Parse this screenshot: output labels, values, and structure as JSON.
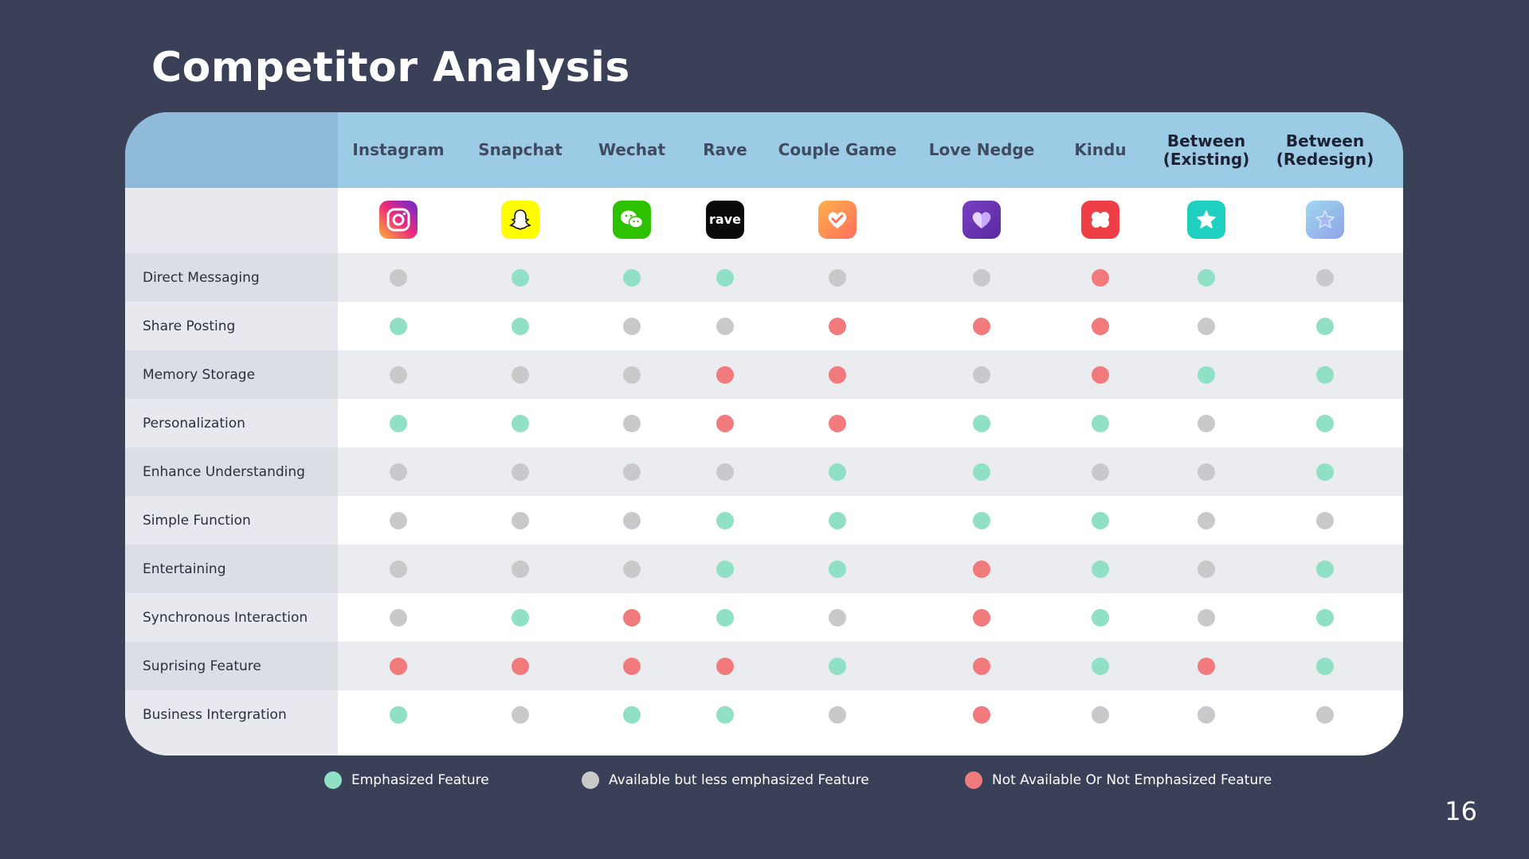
{
  "title": "Competitor Analysis",
  "page_number": "16",
  "colors": {
    "emphasized": "#8fe0c4",
    "available": "#c9c9cc",
    "not_available": "#f07a7c",
    "header_bg": "#9ccbe5",
    "header_text": "#3f4b61",
    "header_text_dark": "#1c2233"
  },
  "competitors": [
    {
      "name": "Instagram",
      "icon": "instagram-icon",
      "dark": false
    },
    {
      "name": "Snapchat",
      "icon": "snapchat-icon",
      "dark": false
    },
    {
      "name": "Wechat",
      "icon": "wechat-icon",
      "dark": false
    },
    {
      "name": "Rave",
      "icon": "rave-icon",
      "dark": false
    },
    {
      "name": "Couple Game",
      "icon": "couple-game-icon",
      "dark": false
    },
    {
      "name": "Love Nedge",
      "icon": "love-nedge-icon",
      "dark": false
    },
    {
      "name": "Kindu",
      "icon": "kindu-icon",
      "dark": false
    },
    {
      "name": "Between\n(Existing)",
      "icon": "between-existing-icon",
      "dark": true
    },
    {
      "name": "Between\n(Redesign)",
      "icon": "between-redesign-icon",
      "dark": true
    }
  ],
  "features": [
    {
      "label": "Direct Messaging",
      "values": [
        "A",
        "E",
        "E",
        "E",
        "A",
        "A",
        "N",
        "E",
        "A"
      ]
    },
    {
      "label": "Share Posting",
      "values": [
        "E",
        "E",
        "A",
        "A",
        "N",
        "N",
        "N",
        "A",
        "E"
      ]
    },
    {
      "label": "Memory Storage",
      "values": [
        "A",
        "A",
        "A",
        "N",
        "N",
        "A",
        "N",
        "E",
        "E"
      ]
    },
    {
      "label": "Personalization",
      "values": [
        "E",
        "E",
        "A",
        "N",
        "N",
        "E",
        "E",
        "A",
        "E"
      ]
    },
    {
      "label": "Enhance Understanding",
      "values": [
        "A",
        "A",
        "A",
        "A",
        "E",
        "E",
        "A",
        "A",
        "E"
      ]
    },
    {
      "label": "Simple Function",
      "values": [
        "A",
        "A",
        "A",
        "E",
        "E",
        "E",
        "E",
        "A",
        "A"
      ]
    },
    {
      "label": "Entertaining",
      "values": [
        "A",
        "A",
        "A",
        "E",
        "E",
        "N",
        "E",
        "A",
        "E"
      ]
    },
    {
      "label": "Synchronous Interaction",
      "values": [
        "A",
        "E",
        "N",
        "E",
        "A",
        "N",
        "E",
        "A",
        "E"
      ]
    },
    {
      "label": "Suprising Feature",
      "values": [
        "N",
        "N",
        "N",
        "N",
        "E",
        "N",
        "E",
        "N",
        "E"
      ]
    },
    {
      "label": "Business Intergration",
      "values": [
        "E",
        "A",
        "E",
        "E",
        "A",
        "N",
        "A",
        "A",
        "A"
      ]
    }
  ],
  "legend": {
    "emphasized": "Emphasized Feature",
    "available": "Available but less emphasized Feature",
    "not_available": "Not Available Or Not Emphasized Feature"
  },
  "icon_labels": {
    "rave": "rave"
  }
}
